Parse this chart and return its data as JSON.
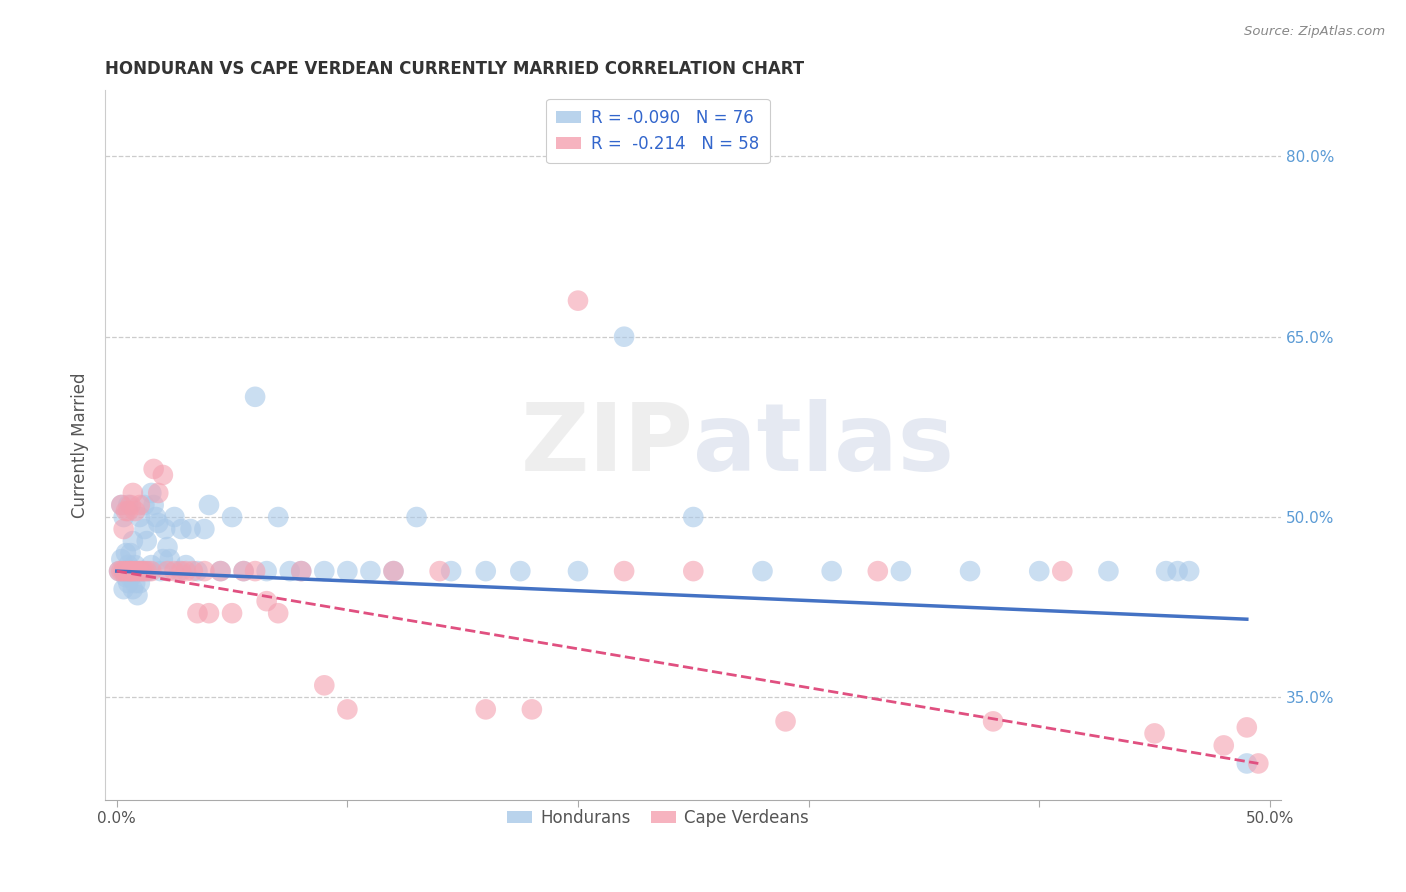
{
  "title": "HONDURAN VS CAPE VERDEAN CURRENTLY MARRIED CORRELATION CHART",
  "source": "Source: ZipAtlas.com",
  "ylabel": "Currently Married",
  "xlim": [
    -0.005,
    0.505
  ],
  "ylim": [
    0.265,
    0.855
  ],
  "xticks": [
    0.0,
    0.1,
    0.2,
    0.3,
    0.4,
    0.5
  ],
  "yticks": [
    0.35,
    0.5,
    0.65,
    0.8
  ],
  "ytick_right_labels": [
    "35.0%",
    "50.0%",
    "65.0%",
    "80.0%"
  ],
  "xtick_labels": [
    "0.0%",
    "",
    "",
    "",
    "",
    "50.0%"
  ],
  "honduran_color": "#a8c8e8",
  "cape_verdean_color": "#f4a0b0",
  "honduran_line_color": "#4472c4",
  "cape_verdean_line_color": "#e05080",
  "honduran_R": -0.09,
  "honduran_N": 76,
  "cape_verdean_R": -0.214,
  "cape_verdean_N": 58,
  "background_color": "#ffffff",
  "watermark": "ZIPatlas",
  "honduran_x": [
    0.001,
    0.002,
    0.002,
    0.003,
    0.003,
    0.003,
    0.004,
    0.004,
    0.004,
    0.005,
    0.005,
    0.005,
    0.006,
    0.006,
    0.006,
    0.007,
    0.007,
    0.007,
    0.008,
    0.008,
    0.009,
    0.009,
    0.01,
    0.01,
    0.011,
    0.012,
    0.012,
    0.013,
    0.014,
    0.015,
    0.015,
    0.016,
    0.017,
    0.018,
    0.019,
    0.02,
    0.021,
    0.022,
    0.023,
    0.025,
    0.027,
    0.028,
    0.03,
    0.032,
    0.035,
    0.038,
    0.04,
    0.045,
    0.05,
    0.055,
    0.06,
    0.065,
    0.07,
    0.075,
    0.08,
    0.09,
    0.1,
    0.11,
    0.12,
    0.13,
    0.145,
    0.16,
    0.175,
    0.2,
    0.22,
    0.25,
    0.28,
    0.31,
    0.34,
    0.37,
    0.4,
    0.43,
    0.455,
    0.46,
    0.465,
    0.49
  ],
  "honduran_y": [
    0.455,
    0.465,
    0.51,
    0.44,
    0.455,
    0.5,
    0.45,
    0.47,
    0.455,
    0.445,
    0.46,
    0.51,
    0.45,
    0.455,
    0.47,
    0.44,
    0.455,
    0.48,
    0.445,
    0.46,
    0.435,
    0.455,
    0.445,
    0.5,
    0.455,
    0.49,
    0.51,
    0.48,
    0.455,
    0.52,
    0.46,
    0.51,
    0.5,
    0.495,
    0.455,
    0.465,
    0.49,
    0.475,
    0.465,
    0.5,
    0.455,
    0.49,
    0.46,
    0.49,
    0.455,
    0.49,
    0.51,
    0.455,
    0.5,
    0.455,
    0.6,
    0.455,
    0.5,
    0.455,
    0.455,
    0.455,
    0.455,
    0.455,
    0.455,
    0.5,
    0.455,
    0.455,
    0.455,
    0.455,
    0.65,
    0.5,
    0.455,
    0.455,
    0.455,
    0.455,
    0.455,
    0.455,
    0.455,
    0.455,
    0.455,
    0.295
  ],
  "cape_verdean_x": [
    0.001,
    0.002,
    0.002,
    0.003,
    0.003,
    0.004,
    0.004,
    0.005,
    0.005,
    0.006,
    0.006,
    0.006,
    0.007,
    0.007,
    0.008,
    0.008,
    0.009,
    0.01,
    0.01,
    0.011,
    0.012,
    0.013,
    0.015,
    0.016,
    0.018,
    0.02,
    0.022,
    0.025,
    0.028,
    0.03,
    0.033,
    0.035,
    0.038,
    0.04,
    0.045,
    0.05,
    0.055,
    0.06,
    0.065,
    0.07,
    0.08,
    0.09,
    0.1,
    0.12,
    0.14,
    0.16,
    0.18,
    0.2,
    0.22,
    0.25,
    0.29,
    0.33,
    0.38,
    0.41,
    0.45,
    0.48,
    0.49,
    0.495
  ],
  "cape_verdean_y": [
    0.455,
    0.51,
    0.455,
    0.49,
    0.455,
    0.505,
    0.455,
    0.505,
    0.455,
    0.455,
    0.51,
    0.455,
    0.52,
    0.455,
    0.505,
    0.455,
    0.455,
    0.455,
    0.51,
    0.455,
    0.455,
    0.455,
    0.455,
    0.54,
    0.52,
    0.535,
    0.455,
    0.455,
    0.455,
    0.455,
    0.455,
    0.42,
    0.455,
    0.42,
    0.455,
    0.42,
    0.455,
    0.455,
    0.43,
    0.42,
    0.455,
    0.36,
    0.34,
    0.455,
    0.455,
    0.34,
    0.34,
    0.68,
    0.455,
    0.455,
    0.33,
    0.455,
    0.33,
    0.455,
    0.32,
    0.31,
    0.325,
    0.295
  ],
  "hon_line_x": [
    0.0,
    0.49
  ],
  "hon_line_y": [
    0.455,
    0.415
  ],
  "cv_line_x": [
    0.0,
    0.495
  ],
  "cv_line_y": [
    0.455,
    0.295
  ]
}
